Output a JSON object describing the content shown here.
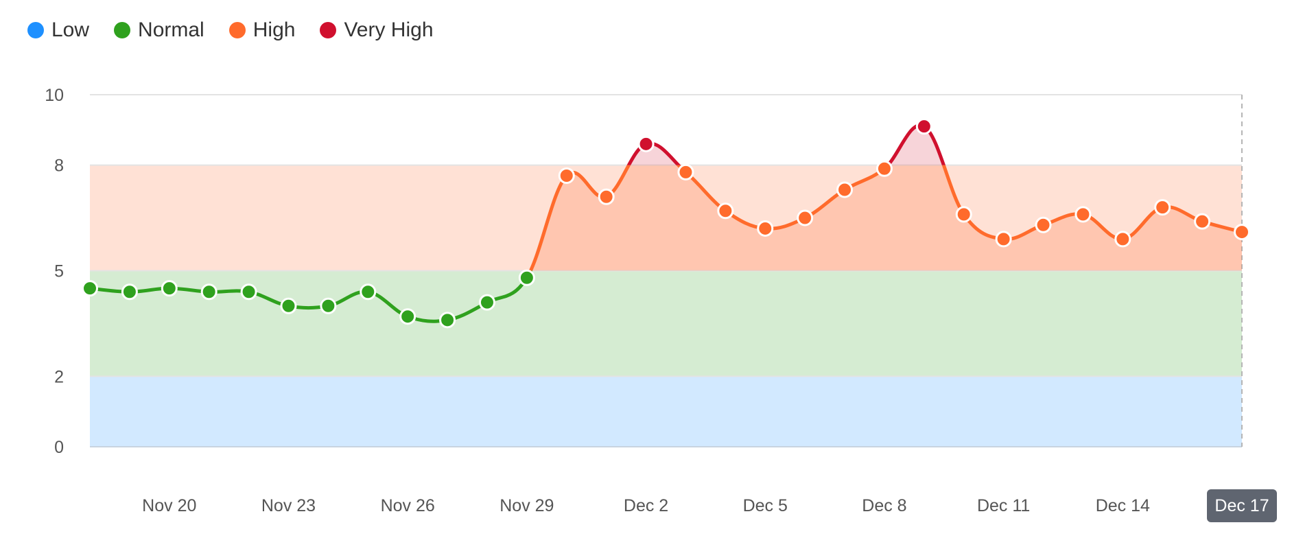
{
  "legend": {
    "items": [
      {
        "label": "Low",
        "color": "#1e90ff"
      },
      {
        "label": "Normal",
        "color": "#2fa11e"
      },
      {
        "label": "High",
        "color": "#ff6b2c"
      },
      {
        "label": "Very High",
        "color": "#d0102e"
      }
    ]
  },
  "chart_data": {
    "type": "line",
    "title": "",
    "xlabel": "",
    "ylabel": "",
    "ylim": [
      0,
      10
    ],
    "y_ticks": [
      0,
      2,
      5,
      8,
      10
    ],
    "x_start": "Nov 18",
    "x_end": "Dec 17",
    "x_tick_labels": [
      "Nov 20",
      "Nov 23",
      "Nov 26",
      "Nov 29",
      "Dec 2",
      "Dec 5",
      "Dec 8",
      "Dec 11",
      "Dec 14",
      "Dec 17"
    ],
    "highlighted_x_label": "Dec 17",
    "grid": true,
    "legend_position": "top-left",
    "bands": [
      {
        "name": "Low",
        "from": 0,
        "to": 2,
        "color": "#1e90ff"
      },
      {
        "name": "Normal",
        "from": 2,
        "to": 5,
        "color": "#2fa11e"
      },
      {
        "name": "High",
        "from": 5,
        "to": 8,
        "color": "#ff6b2c"
      },
      {
        "name": "Very High",
        "from": 8,
        "to": 10,
        "color": "#d0102e"
      }
    ],
    "series": [
      {
        "x": [
          "Nov 18",
          "Nov 19",
          "Nov 20",
          "Nov 21",
          "Nov 22",
          "Nov 23",
          "Nov 24",
          "Nov 25",
          "Nov 26",
          "Nov 27",
          "Nov 28",
          "Nov 29",
          "Nov 30",
          "Dec 1",
          "Dec 2",
          "Dec 3",
          "Dec 4",
          "Dec 5",
          "Dec 6",
          "Dec 7",
          "Dec 8",
          "Dec 9",
          "Dec 10",
          "Dec 11",
          "Dec 12",
          "Dec 13",
          "Dec 14",
          "Dec 15",
          "Dec 16",
          "Dec 17"
        ],
        "values": [
          4.5,
          4.4,
          4.5,
          4.4,
          4.4,
          4.0,
          4.0,
          4.4,
          3.7,
          3.6,
          4.1,
          4.8,
          7.7,
          7.1,
          8.6,
          7.8,
          6.7,
          6.2,
          6.5,
          7.3,
          7.9,
          9.1,
          6.6,
          5.9,
          6.3,
          6.6,
          5.9,
          6.8,
          6.4,
          6.1
        ]
      }
    ]
  }
}
